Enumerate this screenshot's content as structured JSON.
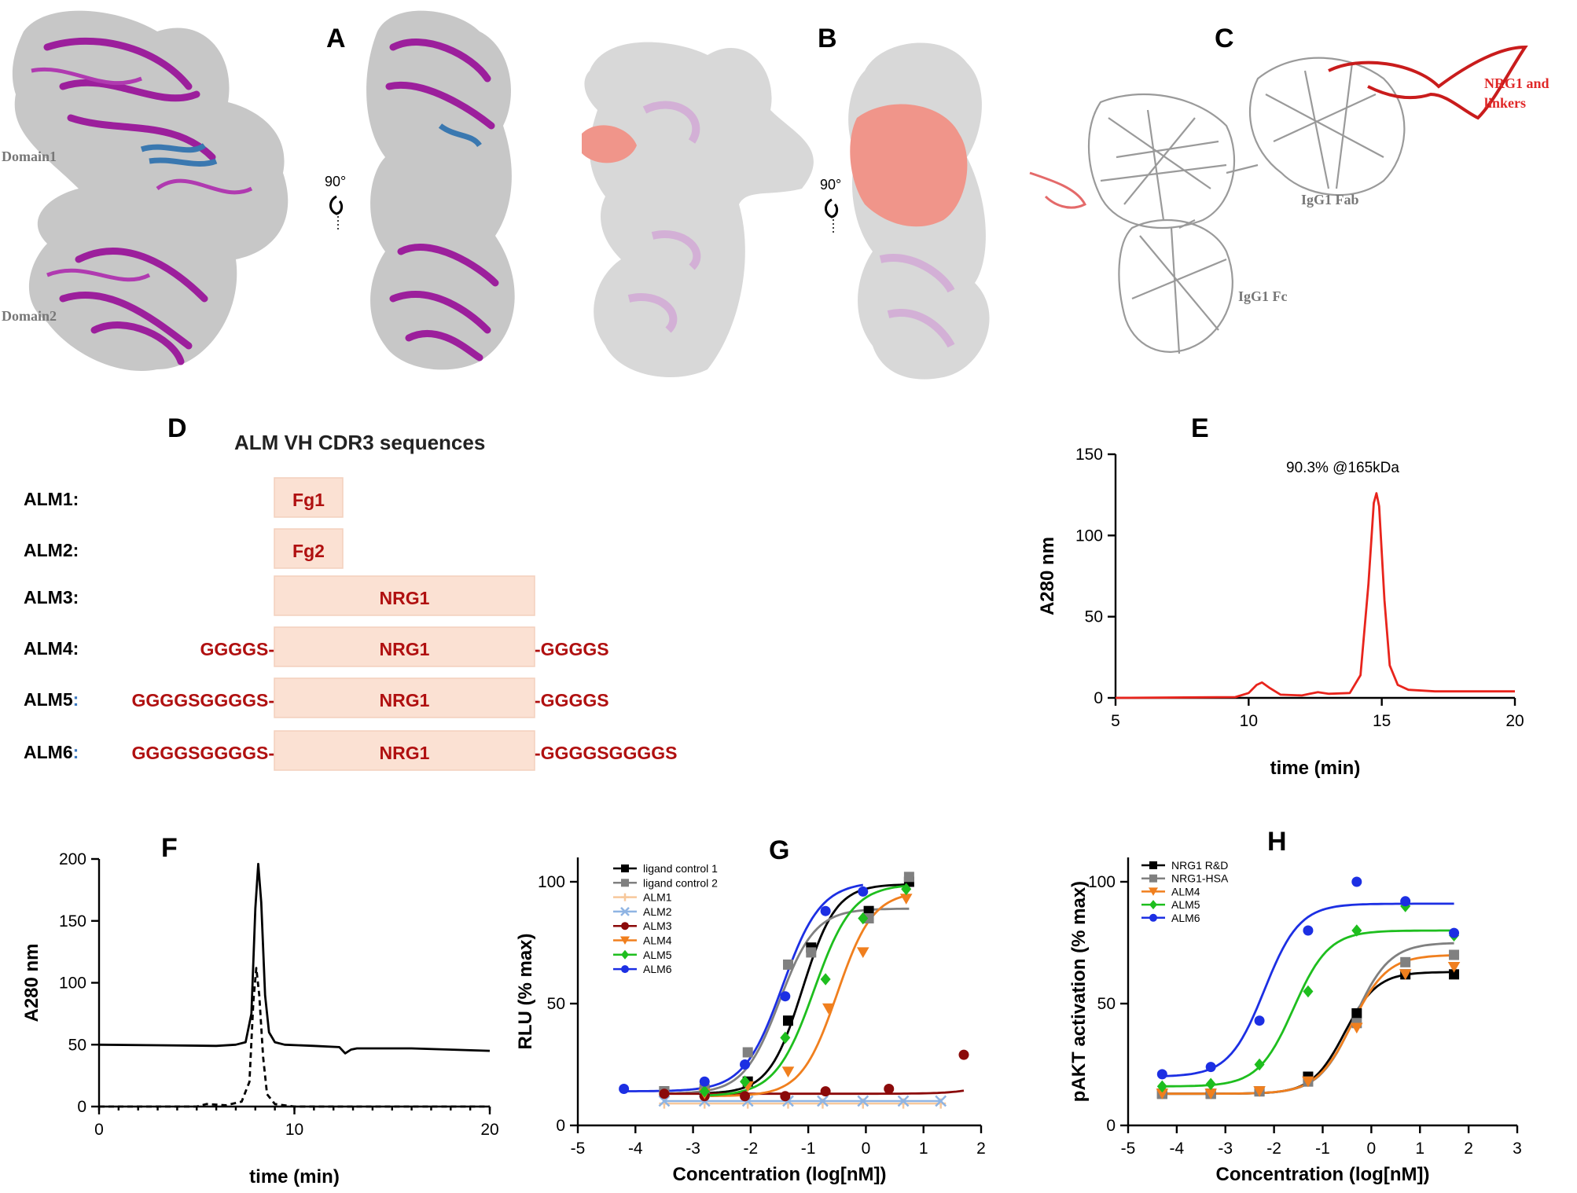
{
  "panels": {
    "A": {
      "label": "A",
      "domain1": "Domain1",
      "domain2": "Domain2",
      "rotation": "90°"
    },
    "B": {
      "label": "B",
      "rotation": "90°"
    },
    "C": {
      "label": "C",
      "nrg1": "NRG1 and",
      "linkers": "linkers",
      "fab": "IgG1 Fab",
      "fc": "IgG1 Fc"
    },
    "D": {
      "label": "D",
      "title": "ALM VH CDR3 sequences",
      "rows": [
        {
          "name": "ALM1:",
          "left": "",
          "box": "Fg1",
          "right": ""
        },
        {
          "name": "ALM2:",
          "left": "",
          "box": "Fg2",
          "right": ""
        },
        {
          "name": "ALM3:",
          "left": "",
          "box": "NRG1",
          "right": ""
        },
        {
          "name": "ALM4:",
          "left": "GGGGS-",
          "box": "NRG1",
          "right": "-GGGGS"
        },
        {
          "name": "ALM5",
          "colon": ":",
          "left": "GGGGSGGGGS-",
          "box": "NRG1",
          "right": "-GGGGS"
        },
        {
          "name": "ALM6",
          "colon": ":",
          "left": "GGGGSGGGGS-",
          "box": "NRG1",
          "right": "-GGGGSGGGGS"
        }
      ]
    },
    "E": {
      "label": "E",
      "annotation": "90.3% @165kDa"
    },
    "F": {
      "label": "F"
    },
    "G": {
      "label": "G"
    },
    "H": {
      "label": "H"
    }
  },
  "chart_data": [
    {
      "panel": "E",
      "type": "line",
      "xlabel": "time  (min)",
      "ylabel": "A280 nm",
      "xlim": [
        5,
        20
      ],
      "ylim": [
        0,
        150
      ],
      "xticks": [
        "5",
        "10",
        "15",
        "20"
      ],
      "yticks": [
        "0",
        "50",
        "100",
        "150"
      ],
      "series": [
        {
          "color": "#e8241c",
          "x": [
            5,
            9.5,
            10.0,
            10.3,
            10.5,
            10.8,
            11.2,
            12.0,
            12.3,
            12.6,
            13.0,
            13.8,
            14.2,
            14.5,
            14.7,
            14.8,
            14.9,
            15.1,
            15.3,
            15.6,
            16.0,
            17.0,
            20
          ],
          "y": [
            0,
            0.5,
            3,
            8,
            9.5,
            6,
            2,
            1.5,
            2.5,
            3.5,
            2.5,
            3,
            14,
            70,
            120,
            126,
            118,
            60,
            20,
            8,
            5,
            4,
            4
          ]
        }
      ]
    },
    {
      "panel": "F",
      "type": "line",
      "xlabel": "time  (min)",
      "ylabel": "A280 nm",
      "xlim": [
        0,
        20
      ],
      "ylim": [
        0,
        200
      ],
      "xticks": [
        "0",
        "10",
        "20"
      ],
      "yticks": [
        "0",
        "50",
        "100",
        "150",
        "200"
      ],
      "series": [
        {
          "style": "solid",
          "x": [
            0,
            3,
            6,
            7,
            7.5,
            7.8,
            8.0,
            8.15,
            8.3,
            8.5,
            8.7,
            9.0,
            9.5,
            11,
            12.3,
            12.6,
            12.9,
            13.2,
            16,
            20
          ],
          "y": [
            50,
            49.5,
            49,
            50,
            52,
            75,
            160,
            196,
            165,
            90,
            60,
            52,
            50,
            49,
            48,
            43,
            46,
            47,
            47,
            45
          ]
        },
        {
          "style": "dashed",
          "x": [
            0,
            5,
            5.5,
            6.5,
            7.3,
            7.7,
            7.9,
            8.05,
            8.2,
            8.4,
            8.6,
            9.0,
            10,
            20
          ],
          "y": [
            0,
            0,
            2,
            1,
            4,
            20,
            85,
            112,
            90,
            40,
            10,
            2,
            0,
            0
          ]
        }
      ]
    },
    {
      "panel": "G",
      "type": "scatter",
      "xlabel": "Concentration (log[nM])",
      "ylabel": "RLU (% max)",
      "xlim": [
        -5,
        2
      ],
      "ylim": [
        0,
        110
      ],
      "xticks": [
        "-5",
        "-4",
        "-3",
        "-2",
        "-1",
        "0",
        "1",
        "2"
      ],
      "yticks": [
        "0",
        "50",
        "100"
      ],
      "series": [
        {
          "name": "ligand control 1",
          "color": "#000000",
          "marker": "square",
          "x": [
            -3.5,
            -2.8,
            -2.05,
            -1.35,
            -0.95,
            0.05,
            0.75
          ],
          "y": [
            14,
            14,
            18,
            43,
            73,
            88,
            100
          ],
          "fit": {
            "bottom": 13,
            "top": 99,
            "ec50": -1.1,
            "hill": 1.5
          }
        },
        {
          "name": "ligand control 2",
          "color": "#808080",
          "marker": "square",
          "x": [
            -3.5,
            -2.8,
            -2.05,
            -1.35,
            -0.95,
            0.05,
            0.75
          ],
          "y": [
            14,
            15,
            30,
            66,
            71,
            85,
            102
          ],
          "fit": {
            "bottom": 13,
            "top": 89,
            "ec50": -1.5,
            "hill": 1.4
          }
        },
        {
          "name": "ALM1",
          "color": "#f7c89b",
          "marker": "plus",
          "x": [
            -3.5,
            -2.8,
            -2.05,
            -1.35,
            -0.75,
            -0.05,
            0.65,
            1.3
          ],
          "y": [
            9,
            9,
            9,
            9,
            9,
            9,
            9,
            9
          ]
        },
        {
          "name": "ALM2",
          "color": "#8fb4e3",
          "marker": "x",
          "x": [
            -3.5,
            -2.8,
            -2.05,
            -1.35,
            -0.75,
            -0.05,
            0.65,
            1.3
          ],
          "y": [
            10,
            10,
            10,
            10,
            10,
            10,
            10,
            10
          ]
        },
        {
          "name": "ALM3",
          "color": "#8b0a0a",
          "marker": "circle",
          "x": [
            -3.5,
            -2.8,
            -2.1,
            -1.4,
            -0.7,
            0.4,
            1.7
          ],
          "y": [
            13,
            12,
            12,
            12,
            14,
            15,
            29
          ],
          "fit": {
            "bottom": 13,
            "top": 100,
            "ec50": 3.1,
            "hill": 1.3
          }
        },
        {
          "name": "ALM4",
          "color": "#f07f1e",
          "marker": "triangle-down",
          "x": [
            -2.8,
            -2.05,
            -1.35,
            -0.65,
            -0.05,
            0.7
          ],
          "y": [
            13,
            16,
            22,
            48,
            71,
            93
          ],
          "fit": {
            "bottom": 12,
            "top": 96,
            "ec50": -0.5,
            "hill": 1.4
          }
        },
        {
          "name": "ALM5",
          "color": "#1ebe1e",
          "marker": "diamond",
          "x": [
            -2.8,
            -2.1,
            -1.4,
            -0.7,
            -0.05,
            0.7
          ],
          "y": [
            14,
            18,
            36,
            60,
            85,
            97
          ],
          "fit": {
            "bottom": 12,
            "top": 99,
            "ec50": -0.9,
            "hill": 1.3
          }
        },
        {
          "name": "ALM6",
          "color": "#1c2fe3",
          "marker": "circle",
          "x": [
            -4.2,
            -2.8,
            -2.1,
            -1.4,
            -0.7,
            -0.05
          ],
          "y": [
            15,
            18,
            25,
            53,
            88,
            96
          ],
          "fit": {
            "bottom": 14,
            "top": 100,
            "ec50": -1.45,
            "hill": 1.3
          }
        }
      ]
    },
    {
      "panel": "H",
      "type": "scatter",
      "xlabel": "Concentration (log[nM])",
      "ylabel": "pAKT activation (% max)",
      "xlim": [
        -5,
        3
      ],
      "ylim": [
        0,
        110
      ],
      "xticks": [
        "-5",
        "-4",
        "-3",
        "-2",
        "-1",
        "0",
        "1",
        "2",
        "3"
      ],
      "yticks": [
        "0",
        "50",
        "100"
      ],
      "series": [
        {
          "name": "NRG1 R&D",
          "color": "#000000",
          "marker": "square",
          "x": [
            -4.3,
            -3.3,
            -2.3,
            -1.3,
            -0.3,
            0.7,
            1.7
          ],
          "y": [
            13,
            13,
            14,
            20,
            46,
            62,
            62
          ],
          "fit": {
            "bottom": 13,
            "top": 63,
            "ec50": -0.55,
            "hill": 1.3
          }
        },
        {
          "name": "NRG1-HSA",
          "color": "#808080",
          "marker": "square",
          "x": [
            -4.3,
            -3.3,
            -2.3,
            -1.3,
            -0.3,
            0.7,
            1.7
          ],
          "y": [
            13,
            13,
            14,
            18,
            42,
            67,
            70
          ],
          "fit": {
            "bottom": 13,
            "top": 75,
            "ec50": -0.35,
            "hill": 1.2
          }
        },
        {
          "name": "ALM4",
          "color": "#f07f1e",
          "marker": "triangle-down",
          "x": [
            -4.3,
            -3.3,
            -2.3,
            -1.3,
            -0.3,
            0.7,
            1.7
          ],
          "y": [
            13,
            13,
            14,
            18,
            40,
            62,
            65
          ],
          "fit": {
            "bottom": 13,
            "top": 70,
            "ec50": -0.4,
            "hill": 1.2
          }
        },
        {
          "name": "ALM5",
          "color": "#1ebe1e",
          "marker": "diamond",
          "x": [
            -4.3,
            -3.3,
            -2.3,
            -1.3,
            -0.3,
            0.7,
            1.7
          ],
          "y": [
            16,
            17,
            25,
            55,
            80,
            90,
            78
          ],
          "fit": {
            "bottom": 16,
            "top": 80,
            "ec50": -1.6,
            "hill": 1.2
          }
        },
        {
          "name": "ALM6",
          "color": "#1c2fe3",
          "marker": "circle",
          "x": [
            -4.3,
            -3.3,
            -2.3,
            -1.3,
            -0.3,
            0.7,
            1.7
          ],
          "y": [
            21,
            24,
            43,
            80,
            100,
            92,
            79
          ],
          "fit": {
            "bottom": 20,
            "top": 91,
            "ec50": -2.2,
            "hill": 1.2
          }
        }
      ]
    }
  ]
}
